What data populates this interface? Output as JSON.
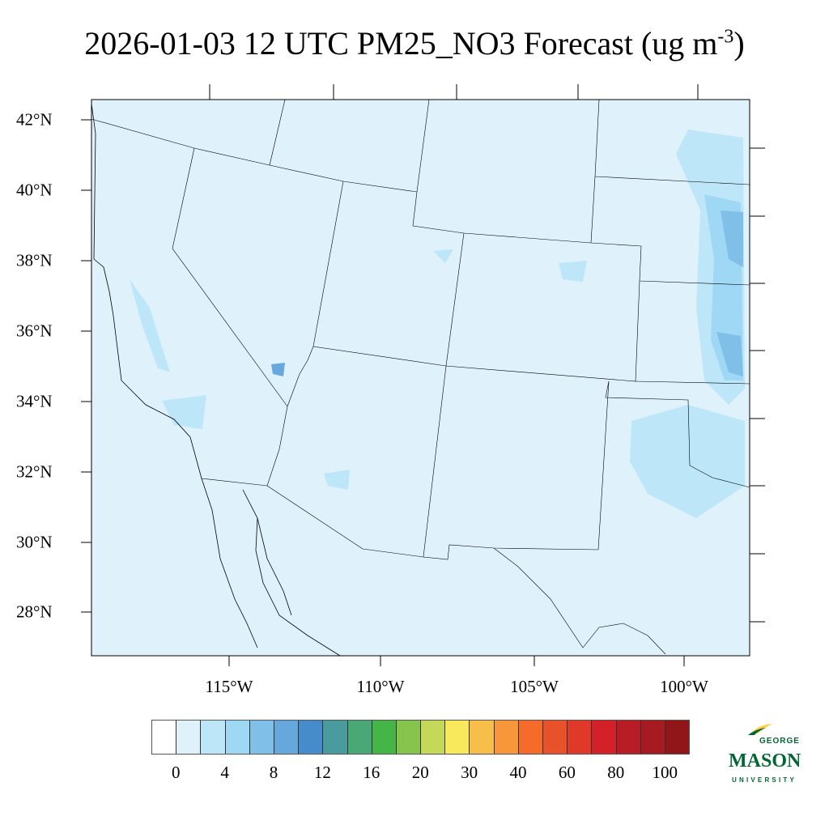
{
  "title": {
    "main": "2026-01-03 12 UTC PM25_NO3 Forecast (ug m",
    "superscript": "-3",
    "close": ")"
  },
  "lat_labels": [
    "42°N",
    "40°N",
    "38°N",
    "36°N",
    "34°N",
    "32°N",
    "30°N",
    "28°N"
  ],
  "lon_labels": [
    "115°W",
    "110°W",
    "105°W",
    "100°W"
  ],
  "colorbar": {
    "labels": [
      "0",
      "4",
      "8",
      "12",
      "16",
      "20",
      "30",
      "40",
      "60",
      "80",
      "100"
    ],
    "colors": [
      "#ffffff",
      "#dff2fc",
      "#bde6f8",
      "#9ed8f5",
      "#80c0e8",
      "#66a8dc",
      "#468ccb",
      "#4a9b9e",
      "#4aa876",
      "#46b548",
      "#86c44d",
      "#c4d95a",
      "#f8e85c",
      "#f8be4a",
      "#f7963a",
      "#f46b2a",
      "#e8522a",
      "#e0392a",
      "#d42029",
      "#b81c24",
      "#a61a22",
      "#901619"
    ]
  },
  "map": {
    "background_color": "#dff2fc",
    "light_color": "#bde6f8",
    "mid_color": "#9ed8f5",
    "dark_color": "#80c0e8",
    "darkest_color": "#66a8dc"
  },
  "logo": {
    "line1": "GEORGE",
    "line2": "MASON",
    "line3": "UNIVERSITY",
    "green": "#006633",
    "gold": "#ffcc33"
  }
}
